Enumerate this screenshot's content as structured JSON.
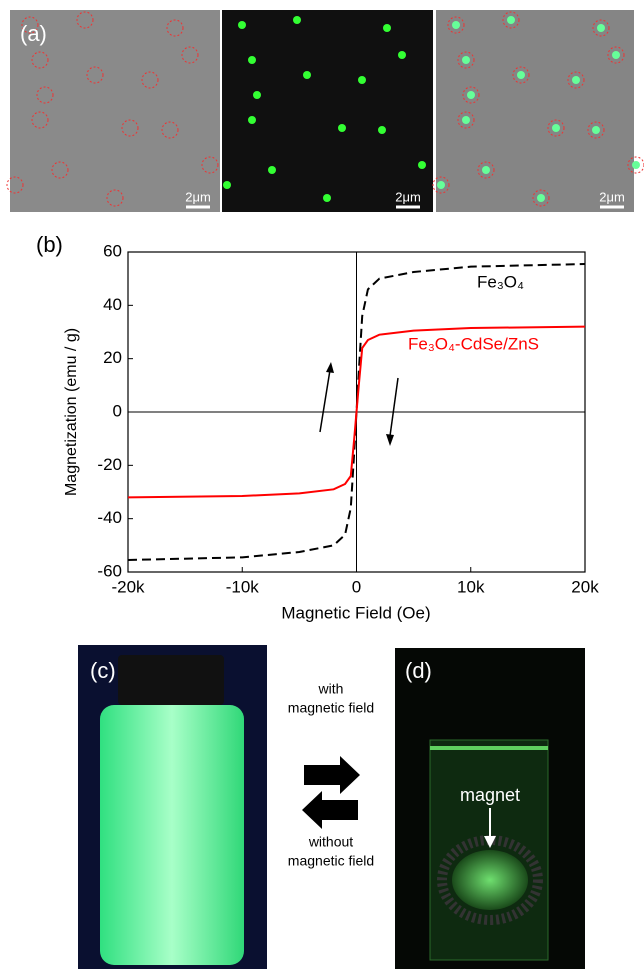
{
  "panels": {
    "a": {
      "label": "(a)",
      "scale_bars": [
        "2μm",
        "2μm",
        "2μm"
      ]
    },
    "c": {
      "label": "(c)"
    },
    "d": {
      "label": "(d)",
      "annotation": "magnet"
    },
    "switch": {
      "forward": [
        "with",
        "magnetic field"
      ],
      "backward": [
        "without",
        "magnetic field"
      ]
    }
  },
  "chart_data": {
    "type": "line",
    "panel_label": "(b)",
    "xlabel": "Magnetic Field (Oe)",
    "ylabel": "Magnetization (emu / g)",
    "x": [
      -20000,
      -10000,
      -5000,
      -2000,
      -1000,
      -500,
      -200,
      0,
      200,
      500,
      1000,
      2000,
      5000,
      10000,
      20000
    ],
    "series": [
      {
        "name": "Fe₃O₄",
        "color": "#000000",
        "line_style": "dashed",
        "values": [
          -55.5,
          -54.5,
          -52.5,
          -50,
          -46,
          -36,
          -15,
          0,
          15,
          36,
          46,
          50,
          52.5,
          54.5,
          55.5
        ]
      },
      {
        "name": "Fe₃O₄-CdSe/ZnS",
        "color": "#ff0000",
        "line_style": "solid",
        "values": [
          -32,
          -31.5,
          -30.5,
          -29,
          -27,
          -24,
          -10,
          0,
          10,
          24,
          27,
          29,
          30.5,
          31.5,
          32
        ]
      }
    ],
    "xlim": [
      -20000,
      20000
    ],
    "xticks": [
      {
        "value": -20000,
        "label": "-20k"
      },
      {
        "value": -10000,
        "label": "-10k"
      },
      0,
      {
        "value": 10000,
        "label": "10k"
      },
      {
        "value": 20000,
        "label": "20k"
      }
    ],
    "ylim": [
      -60,
      60
    ],
    "yticks": [
      -60,
      -40,
      -20,
      0,
      20,
      40,
      60
    ]
  }
}
